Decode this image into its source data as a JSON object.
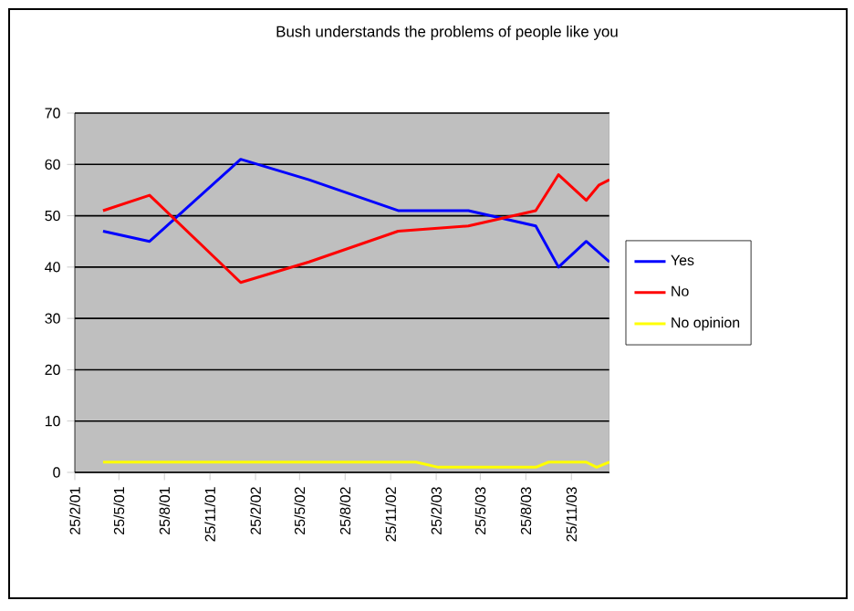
{
  "chart_data": {
    "type": "line",
    "title": "Bush understands the problems of people like you",
    "xlim": [
      "2001-02-25",
      "2004-02-10"
    ],
    "xticks": [
      {
        "value": "2001-02-25",
        "label": "25/2/01"
      },
      {
        "value": "2001-05-25",
        "label": "25/5/01"
      },
      {
        "value": "2001-08-25",
        "label": "25/8/01"
      },
      {
        "value": "2001-11-25",
        "label": "25/11/01"
      },
      {
        "value": "2002-02-25",
        "label": "25/2/02"
      },
      {
        "value": "2002-05-25",
        "label": "25/5/02"
      },
      {
        "value": "2002-08-25",
        "label": "25/8/02"
      },
      {
        "value": "2002-11-25",
        "label": "25/11/02"
      },
      {
        "value": "2003-02-25",
        "label": "25/2/03"
      },
      {
        "value": "2003-05-25",
        "label": "25/5/03"
      },
      {
        "value": "2003-08-25",
        "label": "25/8/03"
      },
      {
        "value": "2003-11-25",
        "label": "25/11/03"
      }
    ],
    "ylim": [
      0,
      70
    ],
    "yticks": [
      0,
      10,
      20,
      30,
      40,
      50,
      60,
      70
    ],
    "grid": "y",
    "legend": "right",
    "series": [
      {
        "name": "Yes",
        "color": "#0000ff",
        "x": [
          "2001-04-23",
          "2001-07-26",
          "2002-01-26",
          "2002-06-13",
          "2002-12-10",
          "2003-05-01",
          "2003-09-14",
          "2003-10-30",
          "2003-12-25",
          "2004-02-10"
        ],
        "values": [
          47,
          45,
          61,
          57,
          51,
          51,
          48,
          40,
          45,
          41
        ]
      },
      {
        "name": "No",
        "color": "#ff0000",
        "x": [
          "2001-04-23",
          "2001-07-26",
          "2002-01-26",
          "2002-06-13",
          "2002-12-10",
          "2003-05-01",
          "2003-09-14",
          "2003-10-30",
          "2003-12-25",
          "2004-01-20",
          "2004-02-10"
        ],
        "values": [
          51,
          54,
          37,
          41,
          47,
          48,
          51,
          58,
          53,
          56,
          57
        ]
      },
      {
        "name": "No opinion",
        "color": "#ffff00",
        "x": [
          "2001-04-23",
          "2003-01-15",
          "2003-03-01",
          "2003-09-14",
          "2003-10-10",
          "2003-12-25",
          "2004-01-15",
          "2004-02-10"
        ],
        "values": [
          2,
          2,
          1,
          1,
          2,
          2,
          1,
          2
        ]
      }
    ]
  }
}
